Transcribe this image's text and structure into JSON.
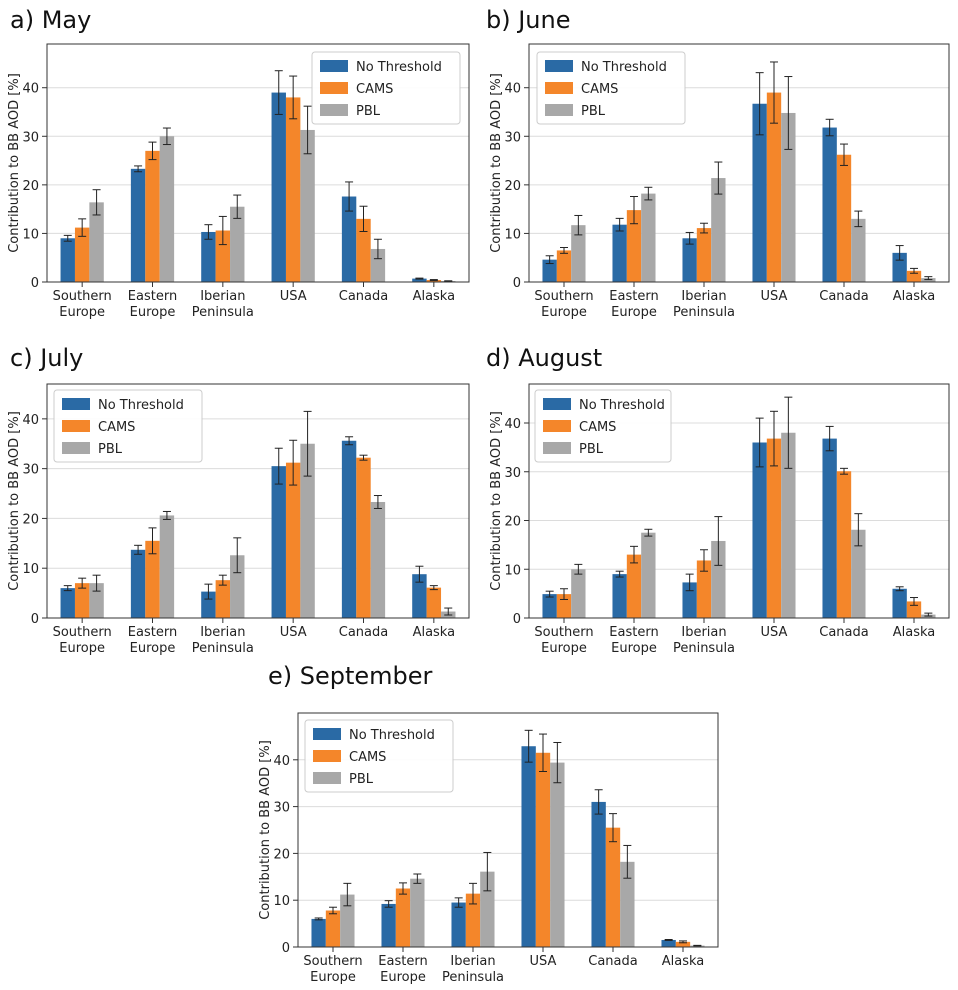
{
  "colors": {
    "No Threshold": "#2a6aa5",
    "CAMS": "#f4862a",
    "PBL": "#a8a8a8"
  },
  "chart_data": [
    {
      "type": "bar",
      "title": "a) May",
      "xlabel": "",
      "ylabel": "Contribution to BB AOD [%]",
      "ylim": [
        0,
        49
      ],
      "yticks": [
        "0",
        "10",
        "20",
        "30",
        "40"
      ],
      "grid": "y",
      "legend": "top-right",
      "categories": [
        "Southern\nEurope",
        "Eastern\nEurope",
        "Iberian\nPeninsula",
        "USA",
        "Canada",
        "Alaska"
      ],
      "series": [
        {
          "name": "No Threshold",
          "values": [
            9.0,
            23.3,
            10.3,
            39.0,
            17.6,
            0.7
          ],
          "errors": [
            0.6,
            0.6,
            1.5,
            4.5,
            3.0,
            0.1
          ]
        },
        {
          "name": "CAMS",
          "values": [
            11.2,
            27.0,
            10.6,
            38.0,
            13.0,
            0.4
          ],
          "errors": [
            1.8,
            1.8,
            2.9,
            4.4,
            2.6,
            0.1
          ]
        },
        {
          "name": "PBL",
          "values": [
            16.4,
            30.0,
            15.5,
            31.3,
            6.8,
            0.2
          ],
          "errors": [
            2.6,
            1.7,
            2.4,
            4.9,
            2.0,
            0.05
          ]
        }
      ]
    },
    {
      "type": "bar",
      "title": "b) June",
      "xlabel": "",
      "ylabel": "Contribution to BB AOD [%]",
      "ylim": [
        0,
        49
      ],
      "yticks": [
        "0",
        "10",
        "20",
        "30",
        "40"
      ],
      "grid": "y",
      "legend": "top-left",
      "categories": [
        "Southern\nEurope",
        "Eastern\nEurope",
        "Iberian\nPeninsula",
        "USA",
        "Canada",
        "Alaska"
      ],
      "series": [
        {
          "name": "No Threshold",
          "values": [
            4.6,
            11.8,
            9.0,
            36.7,
            31.8,
            6.0
          ],
          "errors": [
            0.8,
            1.3,
            1.2,
            6.4,
            1.7,
            1.5
          ]
        },
        {
          "name": "CAMS",
          "values": [
            6.5,
            14.8,
            11.1,
            39.0,
            26.2,
            2.3
          ],
          "errors": [
            0.6,
            2.8,
            1.0,
            6.3,
            2.2,
            0.5
          ]
        },
        {
          "name": "PBL",
          "values": [
            11.7,
            18.2,
            21.4,
            34.8,
            13.0,
            0.8
          ],
          "errors": [
            2.0,
            1.3,
            3.3,
            7.5,
            1.6,
            0.3
          ]
        }
      ]
    },
    {
      "type": "bar",
      "title": "c) July",
      "xlabel": "",
      "ylabel": "Contribution to BB AOD [%]",
      "ylim": [
        0,
        47
      ],
      "yticks": [
        "0",
        "10",
        "20",
        "30",
        "40"
      ],
      "grid": "y",
      "legend": "top-left",
      "categories": [
        "Southern\nEurope",
        "Eastern\nEurope",
        "Iberian\nPeninsula",
        "USA",
        "Canada",
        "Alaska"
      ],
      "series": [
        {
          "name": "No Threshold",
          "values": [
            6.0,
            13.7,
            5.3,
            30.5,
            35.6,
            8.8
          ],
          "errors": [
            0.5,
            0.9,
            1.5,
            3.6,
            0.8,
            1.6
          ]
        },
        {
          "name": "CAMS",
          "values": [
            7.0,
            15.5,
            7.6,
            31.2,
            32.2,
            6.1
          ],
          "errors": [
            1.0,
            2.6,
            1.0,
            4.5,
            0.5,
            0.4
          ]
        },
        {
          "name": "PBL",
          "values": [
            7.0,
            20.6,
            12.6,
            35.0,
            23.3,
            1.3
          ],
          "errors": [
            1.6,
            0.8,
            3.5,
            6.5,
            1.3,
            0.7
          ]
        }
      ]
    },
    {
      "type": "bar",
      "title": "d) August",
      "xlabel": "",
      "ylabel": "Contribution to BB AOD [%]",
      "ylim": [
        0,
        48
      ],
      "yticks": [
        "0",
        "10",
        "20",
        "30",
        "40"
      ],
      "grid": "y",
      "legend": "top-left",
      "categories": [
        "Southern\nEurope",
        "Eastern\nEurope",
        "Iberian\nPeninsula",
        "USA",
        "Canada",
        "Alaska"
      ],
      "series": [
        {
          "name": "No Threshold",
          "values": [
            4.9,
            9.0,
            7.3,
            36.0,
            36.8,
            6.0
          ],
          "errors": [
            0.6,
            0.6,
            1.7,
            5.0,
            2.5,
            0.4
          ]
        },
        {
          "name": "CAMS",
          "values": [
            4.9,
            13.0,
            11.8,
            36.8,
            30.1,
            3.4
          ],
          "errors": [
            1.1,
            1.7,
            2.2,
            5.6,
            0.6,
            0.8
          ]
        },
        {
          "name": "PBL",
          "values": [
            10.0,
            17.5,
            15.8,
            38.0,
            18.1,
            0.7
          ],
          "errors": [
            1.0,
            0.7,
            5.0,
            7.3,
            3.3,
            0.3
          ]
        }
      ]
    },
    {
      "type": "bar",
      "title": "e) September",
      "xlabel": "",
      "ylabel": "Contribution to BB AOD [%]",
      "ylim": [
        0,
        50
      ],
      "yticks": [
        "0",
        "10",
        "20",
        "30",
        "40"
      ],
      "grid": "y",
      "legend": "top-left",
      "categories": [
        "Southern\nEurope",
        "Eastern\nEurope",
        "Iberian\nPeninsula",
        "USA",
        "Canada",
        "Alaska"
      ],
      "series": [
        {
          "name": "No Threshold",
          "values": [
            6.0,
            9.2,
            9.5,
            42.9,
            31.0,
            1.5
          ],
          "errors": [
            0.2,
            0.7,
            1.0,
            3.4,
            2.6,
            0.1
          ]
        },
        {
          "name": "CAMS",
          "values": [
            7.8,
            12.5,
            11.4,
            41.5,
            25.5,
            1.1
          ],
          "errors": [
            0.7,
            1.2,
            2.2,
            4.0,
            3.0,
            0.2
          ]
        },
        {
          "name": "PBL",
          "values": [
            11.2,
            14.6,
            16.1,
            39.4,
            18.2,
            0.3
          ],
          "errors": [
            2.4,
            1.0,
            4.1,
            4.3,
            3.5,
            0.05
          ]
        }
      ]
    }
  ]
}
